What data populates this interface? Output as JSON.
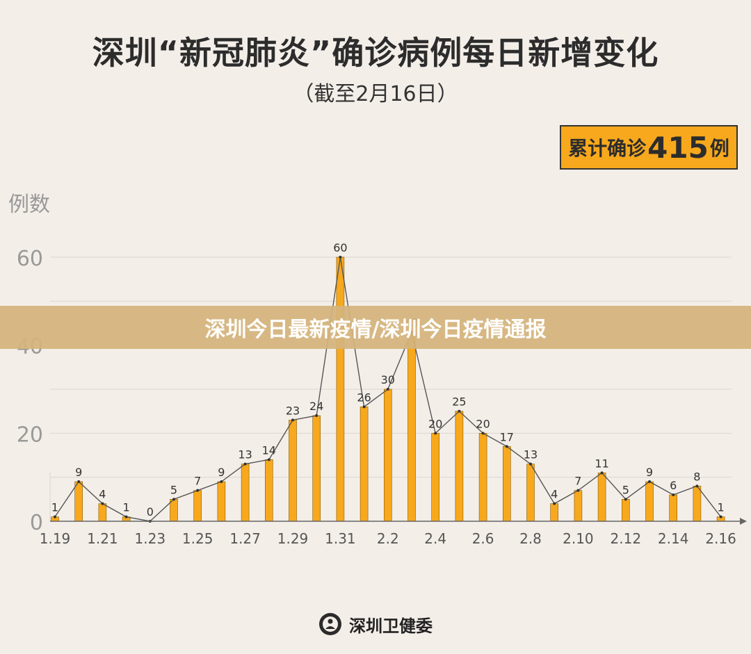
{
  "header": {
    "title": "深圳“新冠肺炎”确诊病例每日新增变化",
    "subtitle": "（截至2月16日）"
  },
  "total": {
    "prefix": "累计确诊",
    "value": "415",
    "suffix": "例"
  },
  "banner": {
    "text": "深圳今日最新疫情/深圳今日疫情通报"
  },
  "footer": {
    "source": "深圳卫健委"
  },
  "colors": {
    "bar": "#f7a81c",
    "line": "#555555",
    "grid": "#dcd6ce",
    "background": "#f3eee8"
  },
  "chart_data": {
    "type": "bar",
    "ylabel": "例数",
    "ylim": [
      0,
      60
    ],
    "yticks": [
      0,
      20,
      40,
      60
    ],
    "x_tick_labels": [
      "1.19",
      "1.21",
      "1.23",
      "1.25",
      "1.27",
      "1.29",
      "1.31",
      "2.2",
      "2.4",
      "2.6",
      "2.8",
      "2.10",
      "2.12",
      "2.14",
      "2.16"
    ],
    "categories": [
      "1.19",
      "1.20",
      "1.21",
      "1.22",
      "1.23",
      "1.24",
      "1.25",
      "1.26",
      "1.27",
      "1.28",
      "1.29",
      "1.30",
      "1.31",
      "2.1",
      "2.2",
      "2.3",
      "2.4",
      "2.5",
      "2.6",
      "2.7",
      "2.8",
      "2.9",
      "2.10",
      "2.11",
      "2.12",
      "2.13",
      "2.14",
      "2.15",
      "2.16"
    ],
    "values": [
      1,
      9,
      4,
      1,
      0,
      5,
      7,
      9,
      13,
      14,
      23,
      24,
      60,
      26,
      30,
      43,
      20,
      25,
      20,
      17,
      13,
      4,
      7,
      11,
      5,
      9,
      6,
      8,
      1
    ],
    "series_overlay": "line",
    "grid": true
  }
}
